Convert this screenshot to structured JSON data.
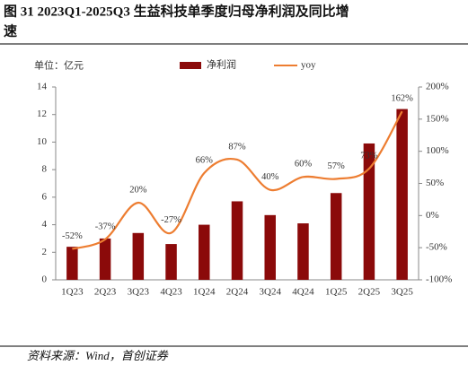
{
  "chart_data": {
    "type": "combo",
    "title": "图 31 2023Q1-2025Q3 生益科技单季度归母净利润及同比增速",
    "unit_label": "单位：亿元",
    "source": "资料来源：Wind，首创证券",
    "categories": [
      "1Q23",
      "2Q23",
      "3Q23",
      "4Q23",
      "1Q24",
      "2Q24",
      "3Q24",
      "4Q24",
      "1Q25",
      "2Q25",
      "3Q25"
    ],
    "series": [
      {
        "name": "净利润",
        "type": "bar",
        "color": "#8b0a0a",
        "values": [
          2.4,
          3.0,
          3.4,
          2.6,
          4.0,
          5.7,
          4.7,
          4.1,
          6.3,
          9.9,
          12.4
        ]
      },
      {
        "name": "yoy",
        "type": "line",
        "axis": "y2",
        "color": "#ed7d31",
        "values": [
          -52,
          -37,
          20,
          -27,
          66,
          87,
          40,
          60,
          57,
          73,
          162
        ],
        "value_labels": [
          "-52%",
          "-37%",
          "20%",
          "-27%",
          "66%",
          "87%",
          "40%",
          "60%",
          "57%",
          "73%",
          "162%"
        ]
      }
    ],
    "ylim": [
      0,
      14
    ],
    "yticks": [
      0,
      2,
      4,
      6,
      8,
      10,
      12,
      14
    ],
    "y2lim": [
      -100,
      200
    ],
    "y2ticks": [
      {
        "value": -100,
        "label": "-100%"
      },
      {
        "value": -50,
        "label": "-50%"
      },
      {
        "value": 0,
        "label": "0%"
      },
      {
        "value": 50,
        "label": "50%"
      },
      {
        "value": 100,
        "label": "100%"
      },
      {
        "value": 150,
        "label": "150%"
      },
      {
        "value": 200,
        "label": "200%"
      }
    ]
  }
}
